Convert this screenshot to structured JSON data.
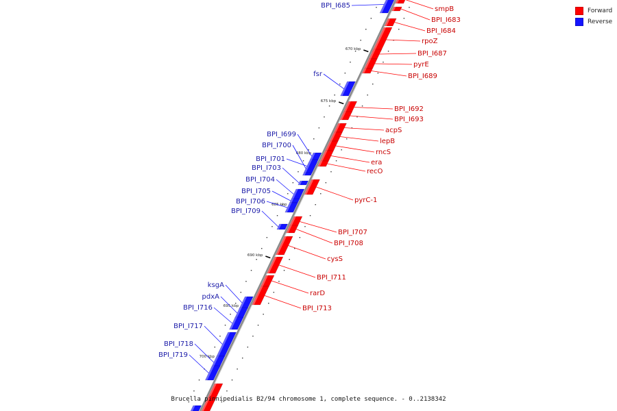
{
  "colors": {
    "forward": "#ff0000",
    "reverse": "#1414ff",
    "backbone": "#8a8a8a"
  },
  "legend": [
    {
      "label": "Forward",
      "color": "#ff0000"
    },
    {
      "label": "Reverse",
      "color": "#1414ff"
    }
  ],
  "caption": "Brucella pinnipedialis B2/94 chromosome 1, complete sequence. - 0..2138342",
  "ticks": [
    "670 kbp",
    "675 kbp",
    "680 kbp",
    "685 kbp",
    "690 kbp",
    "695 kbp",
    "700 kbp"
  ],
  "forward_genes": [
    "smpB",
    "BPI_I683",
    "BPI_I684",
    "rpoZ",
    "BPI_I687",
    "pyrE",
    "BPI_I689",
    "BPI_I692",
    "BPI_I693",
    "acpS",
    "lepB",
    "rncS",
    "era",
    "recO",
    "pyrC-1",
    "BPI_I707",
    "BPI_I708",
    "cysS",
    "BPI_I711",
    "rarD",
    "BPI_I713"
  ],
  "reverse_genes": [
    "BPI_I685",
    "fsr",
    "BPI_I699",
    "BPI_I700",
    "BPI_I701",
    "BPI_I703",
    "BPI_I704",
    "BPI_I705",
    "BPI_I706",
    "BPI_I709",
    "ksgA",
    "pdxA",
    "BPI_I716",
    "BPI_I717",
    "BPI_I718",
    "BPI_I719"
  ]
}
